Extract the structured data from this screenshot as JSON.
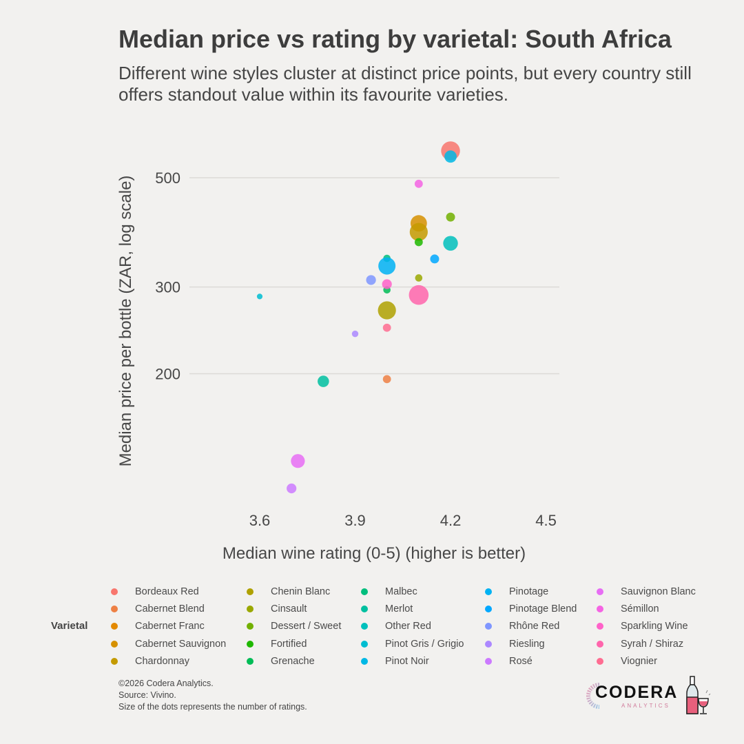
{
  "title": "Median price vs rating by varietal: South Africa",
  "subtitle": "Different wine styles cluster at distinct price points, but every country still offers standout value within its favourite varieties.",
  "chart_data": {
    "type": "scatter",
    "title": "Median price vs rating by varietal: South Africa",
    "subtitle": "Different wine styles cluster at distinct price points, but every country still offers standout value within its favourite varieties.",
    "xlabel": "Median wine rating (0-5) (higher is better)",
    "ylabel": "Median price per bottle (ZAR, log scale)",
    "x_scale": "linear",
    "y_scale": "log",
    "xlim": [
      3.53,
      4.5
    ],
    "ylim": [
      110,
      580
    ],
    "x_ticks": [
      3.6,
      3.9,
      4.2,
      4.5
    ],
    "x_tick_labels": [
      "3.6",
      "3.9",
      "4.2",
      "4.5"
    ],
    "y_ticks": [
      200,
      300,
      500
    ],
    "y_tick_labels": [
      "200",
      "300",
      "500"
    ],
    "grid": "horizontal major",
    "legend_title": "Varietal",
    "legend_position": "bottom",
    "size_note": "Size of the dots represents the number of ratings.",
    "series": [
      {
        "name": "Bordeaux Red",
        "color": "#F8766D",
        "x": 4.2,
        "y": 567,
        "size": 0.85
      },
      {
        "name": "Cabernet Blend",
        "color": "#EE8044",
        "x": 4.0,
        "y": 195,
        "size": 0.2
      },
      {
        "name": "Cabernet Franc",
        "color": "#E38900",
        "x": null,
        "y": null,
        "size": null
      },
      {
        "name": "Cabernet Sauvignon",
        "color": "#D69100",
        "x": 4.1,
        "y": 404,
        "size": 0.7
      },
      {
        "name": "Chardonnay",
        "color": "#C49A00",
        "x": 4.1,
        "y": 388,
        "size": 0.8
      },
      {
        "name": "Chenin Blanc",
        "color": "#AFA100",
        "x": 4.0,
        "y": 269,
        "size": 0.8
      },
      {
        "name": "Cinsault",
        "color": "#9AA800",
        "x": 4.1,
        "y": 313,
        "size": 0.15
      },
      {
        "name": "Dessert / Sweet",
        "color": "#72B000",
        "x": 4.2,
        "y": 416,
        "size": 0.25
      },
      {
        "name": "Fortified",
        "color": "#1FB800",
        "x": 4.1,
        "y": 370,
        "size": 0.2
      },
      {
        "name": "Grenache",
        "color": "#00BC56",
        "x": 4.0,
        "y": 296,
        "size": 0.15
      },
      {
        "name": "Malbec",
        "color": "#00BE7D",
        "x": 4.0,
        "y": 343,
        "size": 0.15
      },
      {
        "name": "Merlot",
        "color": "#00C0A0",
        "x": 3.8,
        "y": 193,
        "size": 0.4
      },
      {
        "name": "Other Red",
        "color": "#00C0BC",
        "x": 4.2,
        "y": 368,
        "size": 0.6
      },
      {
        "name": "Pinot Gris / Grigio",
        "color": "#00BDD1",
        "x": 3.6,
        "y": 287,
        "size": 0.05
      },
      {
        "name": "Pinot Noir",
        "color": "#00B8E5",
        "x": 4.2,
        "y": 552,
        "size": 0.45
      },
      {
        "name": "Pinotage",
        "color": "#00B2F3",
        "x": 4.0,
        "y": 331,
        "size": 0.75
      },
      {
        "name": "Pinotage Blend",
        "color": "#00A8FF",
        "x": 4.15,
        "y": 342,
        "size": 0.25
      },
      {
        "name": "Rhône Red",
        "color": "#7F96FF",
        "x": 3.95,
        "y": 310,
        "size": 0.3
      },
      {
        "name": "Riesling",
        "color": "#AC88FF",
        "x": 3.9,
        "y": 241,
        "size": 0.1
      },
      {
        "name": "Rosé",
        "color": "#CC7AFF",
        "x": 3.7,
        "y": 117,
        "size": 0.3
      },
      {
        "name": "Sauvignon Blanc",
        "color": "#E76DF4",
        "x": 3.72,
        "y": 133,
        "size": 0.55
      },
      {
        "name": "Sémillon",
        "color": "#F564E3",
        "x": 4.1,
        "y": 486,
        "size": 0.2
      },
      {
        "name": "Sparkling Wine",
        "color": "#FF62C9",
        "x": 4.0,
        "y": 304,
        "size": 0.3
      },
      {
        "name": "Syrah / Shiraz",
        "color": "#FF65AC",
        "x": 4.1,
        "y": 289,
        "size": 0.9
      },
      {
        "name": "Viognier",
        "color": "#FF6C91",
        "x": 4.0,
        "y": 248,
        "size": 0.2
      }
    ]
  },
  "legend": {
    "title": "Varietal",
    "columns": [
      [
        "Bordeaux Red",
        "Cabernet Blend",
        "Cabernet Franc",
        "Cabernet Sauvignon",
        "Chardonnay"
      ],
      [
        "Chenin Blanc",
        "Cinsault",
        "Dessert / Sweet",
        "Fortified",
        "Grenache"
      ],
      [
        "Malbec",
        "Merlot",
        "Other Red",
        "Pinot Gris / Grigio",
        "Pinot Noir"
      ],
      [
        "Pinotage",
        "Pinotage Blend",
        "Rhône Red",
        "Riesling",
        "Rosé"
      ],
      [
        "Sauvignon Blanc",
        "Sémillon",
        "Sparkling Wine",
        "Syrah / Shiraz",
        "Viognier"
      ]
    ]
  },
  "footer": {
    "copyright": "©2026 Codera Analytics.",
    "source": "Source: Vivino.",
    "note": "Size of the dots represents the number of ratings."
  },
  "logo": {
    "name": "CODERA",
    "sub": "ANALYTICS",
    "icon": "wine-bottle-glass-icon"
  }
}
